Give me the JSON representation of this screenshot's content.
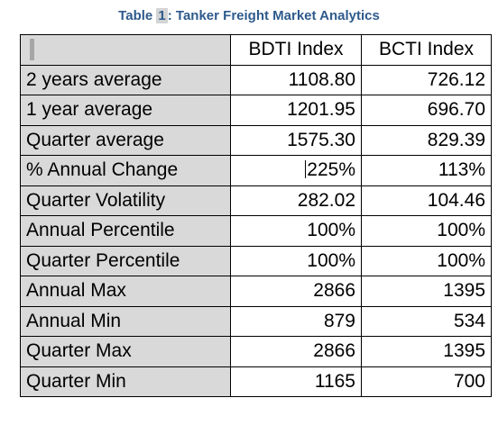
{
  "caption": {
    "prefix": "Table ",
    "number": "1",
    "title": ": Tanker Freight Market Analytics"
  },
  "table": {
    "headers": [
      "",
      "BDTI Index",
      "BCTI Index"
    ],
    "rows": [
      {
        "label": "2 years average",
        "bdti": "1108.80",
        "bcti": "726.12"
      },
      {
        "label": "1 year average",
        "bdti": "1201.95",
        "bcti": "696.70"
      },
      {
        "label": "Quarter average",
        "bdti": "1575.30",
        "bcti": "829.39"
      },
      {
        "label": "% Annual Change",
        "bdti": "225%",
        "bcti": "113%"
      },
      {
        "label": "Quarter Volatility",
        "bdti": "282.02",
        "bcti": "104.46"
      },
      {
        "label": "Annual Percentile",
        "bdti": "100%",
        "bcti": "100%"
      },
      {
        "label": "Quarter Percentile",
        "bdti": "100%",
        "bcti": "100%"
      },
      {
        "label": "Annual Max",
        "bdti": "2866",
        "bcti": "1395"
      },
      {
        "label": "Annual Min",
        "bdti": "879",
        "bcti": "534"
      },
      {
        "label": "Quarter Max",
        "bdti": "2866",
        "bcti": "1395"
      },
      {
        "label": "Quarter Min",
        "bdti": "1165",
        "bcti": "700"
      }
    ]
  },
  "colors": {
    "caption": "#2e5a8c",
    "label_fill": "#d9d9d9"
  }
}
